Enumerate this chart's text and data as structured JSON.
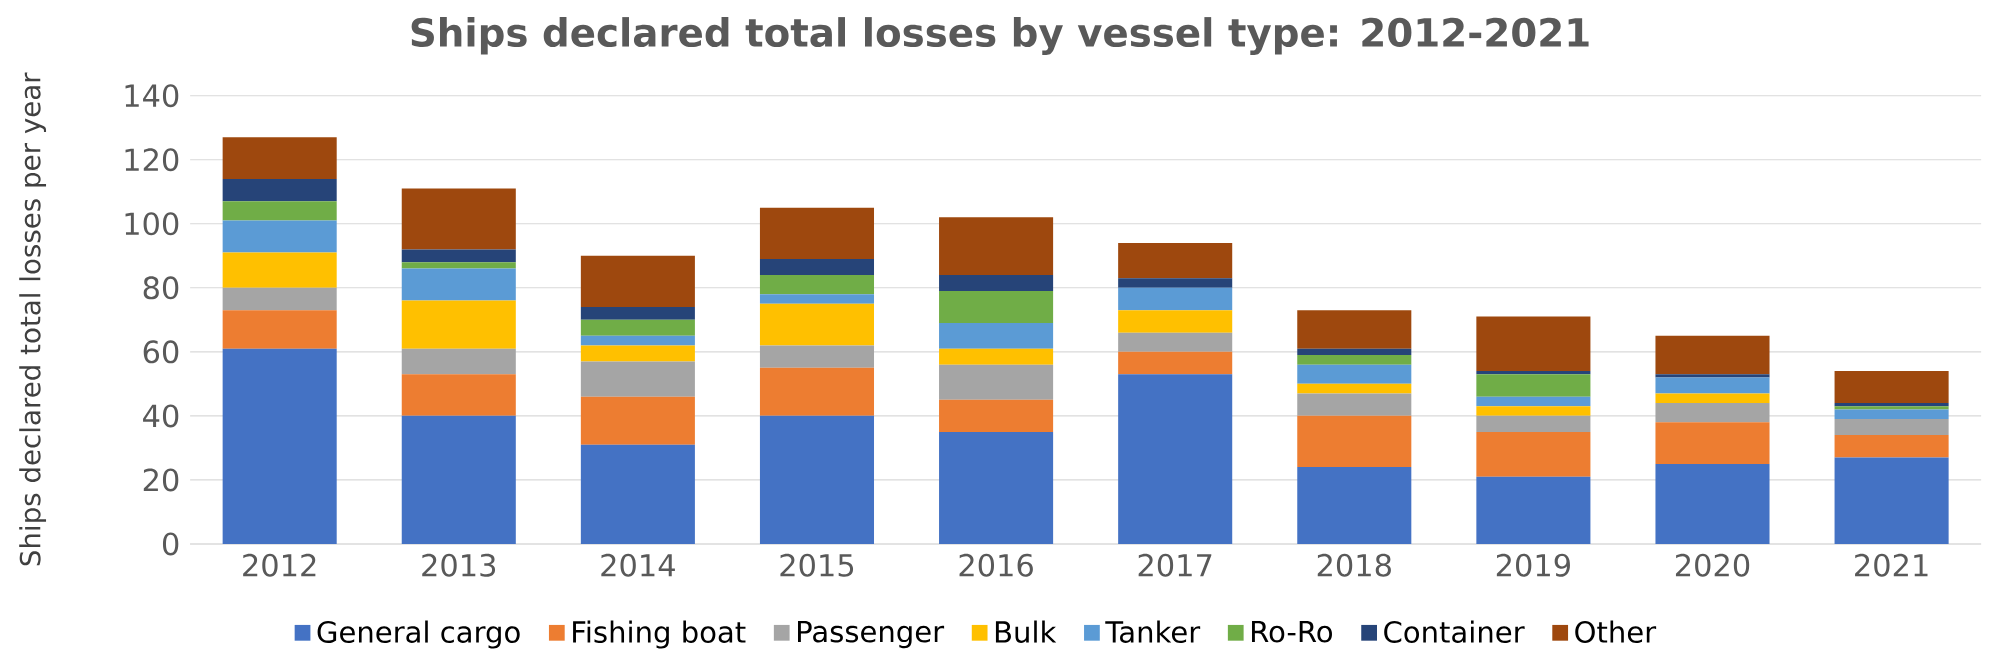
{
  "chart_data": {
    "type": "bar",
    "stacked": true,
    "title": "Ships declared total losses by vessel type: 2012-2021",
    "ylabel": "Ships declared total losses per year",
    "categories": [
      "2012",
      "2013",
      "2014",
      "2015",
      "2016",
      "2017",
      "2018",
      "2019",
      "2020",
      "2021"
    ],
    "series": [
      {
        "name": "General cargo",
        "color": "#4472c4",
        "values": [
          61,
          40,
          31,
          40,
          35,
          53,
          24,
          21,
          25,
          27
        ]
      },
      {
        "name": "Fishing boat",
        "color": "#ed7d31",
        "values": [
          12,
          13,
          15,
          15,
          10,
          7,
          16,
          14,
          13,
          7
        ]
      },
      {
        "name": "Passenger",
        "color": "#a5a5a5",
        "values": [
          7,
          8,
          11,
          7,
          11,
          6,
          7,
          5,
          6,
          5
        ]
      },
      {
        "name": "Bulk",
        "color": "#ffc000",
        "values": [
          11,
          15,
          5,
          13,
          5,
          7,
          3,
          3,
          3,
          0
        ]
      },
      {
        "name": "Tanker",
        "color": "#5b9bd5",
        "values": [
          10,
          10,
          3,
          3,
          8,
          7,
          6,
          3,
          5,
          3
        ]
      },
      {
        "name": "Ro-Ro",
        "color": "#70ad47",
        "values": [
          6,
          2,
          5,
          6,
          10,
          0,
          3,
          7,
          0,
          1
        ]
      },
      {
        "name": "Container",
        "color": "#264478",
        "values": [
          7,
          4,
          4,
          5,
          5,
          3,
          2,
          1,
          1,
          1
        ]
      },
      {
        "name": "Other",
        "color": "#9e480e",
        "values": [
          13,
          19,
          16,
          16,
          18,
          11,
          12,
          17,
          12,
          10
        ]
      }
    ],
    "ylim": [
      0,
      140
    ],
    "yticks": [
      0,
      20,
      40,
      60,
      80,
      100,
      120,
      140
    ],
    "grid": "y",
    "legend": "bottom"
  }
}
